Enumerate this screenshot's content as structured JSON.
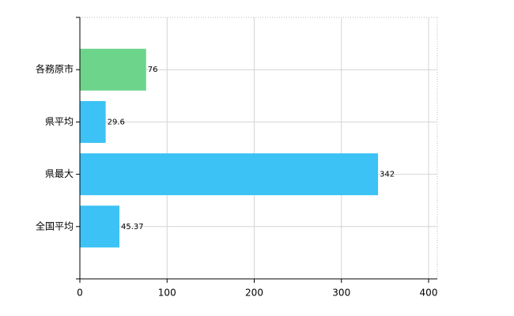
{
  "chart_data": {
    "type": "barh",
    "categories": [
      "各務原市",
      "県平均",
      "県最大",
      "全国平均"
    ],
    "values": [
      76,
      29.6,
      342,
      45.37
    ],
    "colors": [
      "#6dd48c",
      "#3cc2f4",
      "#3cc2f4",
      "#3cc2f4"
    ],
    "xlim": [
      0,
      400
    ],
    "xticks": [
      0,
      100,
      200,
      300,
      400
    ],
    "grid": true
  }
}
